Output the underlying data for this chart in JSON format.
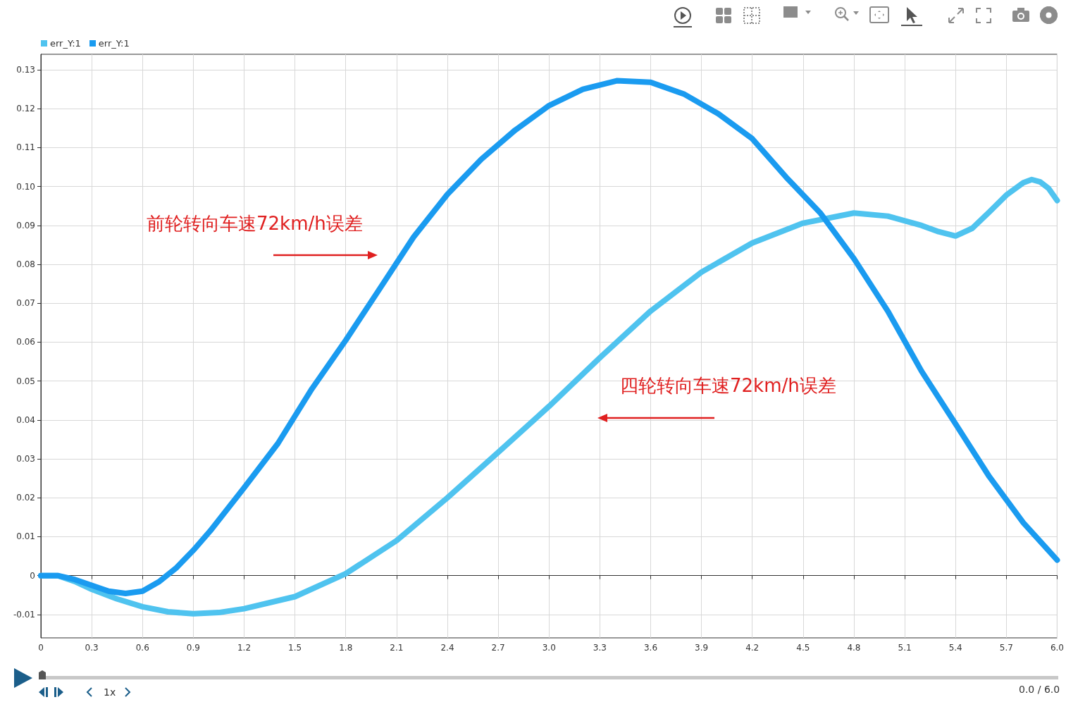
{
  "chart_data": {
    "type": "line",
    "series": [
      {
        "name": "err_Y:1",
        "color": "#4fc3ef",
        "x": [
          0,
          0.1,
          0.2,
          0.3,
          0.45,
          0.6,
          0.75,
          0.9,
          1.05,
          1.2,
          1.5,
          1.8,
          2.1,
          2.4,
          2.7,
          3.0,
          3.3,
          3.6,
          3.9,
          4.2,
          4.5,
          4.8,
          5.0,
          5.2,
          5.3,
          5.4,
          5.5,
          5.6,
          5.7,
          5.8,
          5.85,
          5.9,
          5.95,
          6.0
        ],
        "values": [
          0,
          0,
          -0.0015,
          -0.0035,
          -0.006,
          -0.008,
          -0.0093,
          -0.0098,
          -0.0095,
          -0.0085,
          -0.0054,
          0.0005,
          0.009,
          0.02,
          0.0317,
          0.0435,
          0.056,
          0.068,
          0.078,
          0.0855,
          0.0906,
          0.0932,
          0.0924,
          0.09,
          0.0884,
          0.0873,
          0.0893,
          0.0935,
          0.0978,
          0.101,
          0.1018,
          0.1012,
          0.0995,
          0.0964
        ]
      },
      {
        "name": "err_Y:1",
        "color": "#1a9bf0",
        "x": [
          0,
          0.1,
          0.2,
          0.3,
          0.4,
          0.5,
          0.6,
          0.7,
          0.8,
          0.9,
          1.0,
          1.2,
          1.4,
          1.6,
          1.8,
          2.0,
          2.2,
          2.4,
          2.6,
          2.8,
          3.0,
          3.2,
          3.4,
          3.6,
          3.8,
          4.0,
          4.2,
          4.4,
          4.6,
          4.8,
          5.0,
          5.2,
          5.4,
          5.6,
          5.8,
          6.0
        ],
        "values": [
          0,
          0,
          -0.001,
          -0.0025,
          -0.004,
          -0.0046,
          -0.004,
          -0.0015,
          0.002,
          0.0065,
          0.0115,
          0.0226,
          0.034,
          0.048,
          0.0605,
          0.0737,
          0.087,
          0.098,
          0.107,
          0.1145,
          0.1208,
          0.125,
          0.1272,
          0.1268,
          0.1237,
          0.1187,
          0.1123,
          0.1024,
          0.0933,
          0.0815,
          0.068,
          0.0525,
          0.039,
          0.0254,
          0.0136,
          0.004
        ]
      }
    ],
    "xlim": [
      0,
      6
    ],
    "xticks": [
      0,
      0.3,
      0.6,
      0.9,
      1.2,
      1.5,
      1.8,
      2.1,
      2.4,
      2.7,
      {
        "value": 3,
        "label": "3.0"
      },
      3.3,
      3.6,
      3.9,
      4.2,
      4.5,
      4.8,
      5.1,
      5.4,
      5.7,
      {
        "value": 6,
        "label": "6.0"
      }
    ],
    "ylim": [
      -0.016,
      0.134
    ],
    "yticks": [
      -0.01,
      0,
      0.01,
      0.02,
      0.03,
      0.04,
      0.05,
      0.06,
      0.07,
      0.08,
      0.09,
      {
        "value": 0.1,
        "label": "0.10"
      },
      0.11,
      0.12,
      0.13
    ],
    "grid": true,
    "legend": "top left",
    "marker": "none",
    "line_style": "solid",
    "annotations": [
      "前轮转向车速72km/h误差",
      "四轮转向车速72km/h误差",
      "1x",
      "0.0 / 6.0"
    ]
  }
}
